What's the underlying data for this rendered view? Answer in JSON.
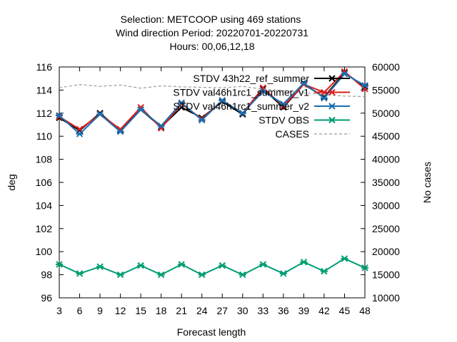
{
  "chart_data": {
    "type": "line",
    "title_lines": [
      "Selection: METCOOP using   469 stations",
      "Wind direction   Period: 20220701-20220731",
      "Hours:  00,06,12,18"
    ],
    "xlabel": "Forecast length",
    "ylabel": "deg",
    "y2label": "No cases",
    "x": [
      3,
      6,
      9,
      12,
      15,
      18,
      21,
      24,
      27,
      30,
      33,
      36,
      39,
      42,
      45,
      48
    ],
    "xlim": [
      3,
      48
    ],
    "ylim": [
      96,
      116
    ],
    "y2lim": [
      10000,
      60000
    ],
    "xticks": [
      "3",
      "6",
      "9",
      "12",
      "15",
      "18",
      "21",
      "24",
      "27",
      "30",
      "33",
      "36",
      "39",
      "42",
      "45",
      "48"
    ],
    "yticks": [
      "96",
      "98",
      "100",
      "102",
      "104",
      "106",
      "108",
      "110",
      "112",
      "114",
      "116"
    ],
    "y2ticks": [
      "10000",
      "15000",
      "20000",
      "25000",
      "30000",
      "35000",
      "40000",
      "45000",
      "50000",
      "55000",
      "60000"
    ],
    "grid": false,
    "legend_position": "top-right",
    "series": [
      {
        "legend": "STDV 43h22_ref_summer",
        "color": "#000000",
        "marker": "cross",
        "axis": "y1",
        "values": [
          111.6,
          110.5,
          112.0,
          110.5,
          112.3,
          110.8,
          112.5,
          111.6,
          113.0,
          111.9,
          114.1,
          112.5,
          114.5,
          113.4,
          115.5,
          114.3
        ]
      },
      {
        "legend": "STDV val46h1rc1_summer_v1",
        "color": "#dd1c1c",
        "marker": "cross",
        "axis": "y1",
        "values": [
          111.7,
          110.6,
          111.9,
          110.6,
          112.5,
          110.7,
          112.8,
          111.5,
          113.1,
          112.0,
          114.2,
          112.6,
          114.5,
          113.8,
          115.6,
          114.1
        ]
      },
      {
        "legend": "STDV val46h1rc1_summer_v2",
        "color": "#1a6fb0",
        "marker": "asterisk",
        "axis": "y1",
        "values": [
          111.8,
          110.2,
          111.9,
          110.4,
          112.3,
          110.9,
          112.9,
          111.4,
          113.1,
          112.0,
          113.9,
          112.8,
          114.6,
          113.3,
          115.4,
          114.4
        ]
      },
      {
        "legend": "STDV OBS",
        "color": "#009e73",
        "marker": "asterisk",
        "axis": "y1",
        "values": [
          98.9,
          98.1,
          98.7,
          98.0,
          98.8,
          98.0,
          98.9,
          98.0,
          98.8,
          98.0,
          98.9,
          98.1,
          99.1,
          98.3,
          99.4,
          98.6
        ]
      },
      {
        "legend": "CASES",
        "color": "#9a9a9a",
        "marker": "none",
        "axis": "y2",
        "dashed": true,
        "values": [
          55500,
          56200,
          55800,
          56100,
          55400,
          55900,
          55700,
          55600,
          55500,
          55800,
          55200,
          54900,
          54400,
          54000,
          53700,
          53600
        ]
      }
    ]
  }
}
